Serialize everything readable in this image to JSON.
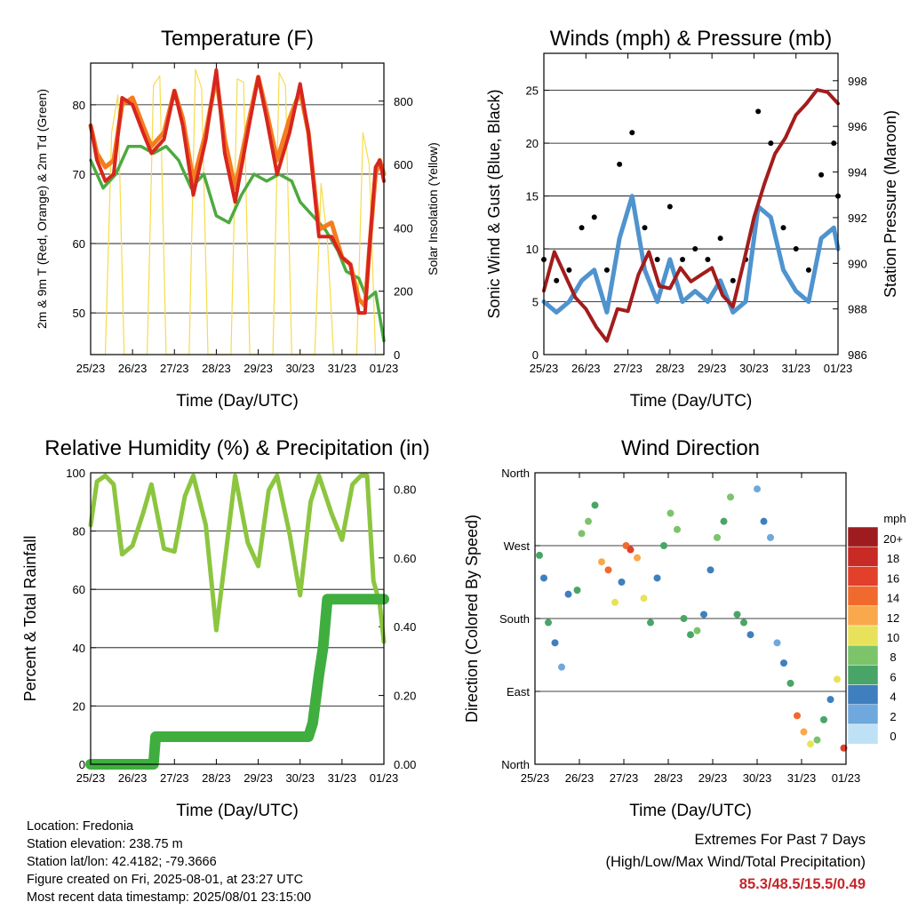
{
  "colors": {
    "temp2m": "#d7261e",
    "temp9m": "#f57c1f",
    "dewpoint": "#4caa40",
    "solar": "#f7dc4a",
    "wind": "#4f93cf",
    "gust": "#000000",
    "pressure": "#a31c1c",
    "rh": "#8cc53f",
    "precip": "#3fae3f",
    "extremes": "#c5262c"
  },
  "chart_data": [
    {
      "id": "temperature",
      "type": "line",
      "title": "Temperature (F)",
      "xlabel": "Time (Day/UTC)",
      "ylabel": "2m & 9m T (Red, Orange) & 2m Td (Green)",
      "ylabel_right": "Solar Insolation (Yellow)",
      "x_ticks": [
        "25/23",
        "26/23",
        "27/23",
        "28/23",
        "29/23",
        "30/23",
        "31/23",
        "01/23"
      ],
      "xlim": [
        0,
        7
      ],
      "ylim": [
        44,
        86
      ],
      "y_ticks": [
        50,
        60,
        70,
        80
      ],
      "ylim_right": [
        0,
        920
      ],
      "y_ticks_right": [
        0,
        200,
        400,
        600,
        800
      ],
      "grid": "horizontal at left y ticks",
      "series": [
        {
          "key": "temp2m",
          "x": [
            0,
            0.15,
            0.35,
            0.55,
            0.75,
            1.0,
            1.25,
            1.45,
            1.75,
            2.0,
            2.2,
            2.45,
            2.75,
            3.0,
            3.2,
            3.45,
            3.75,
            4.0,
            4.2,
            4.45,
            4.75,
            5.0,
            5.2,
            5.45,
            5.75,
            6.0,
            6.2,
            6.4,
            6.55,
            6.65,
            6.8,
            6.9,
            7.0
          ],
          "y": [
            77,
            72,
            69,
            70,
            81,
            80,
            76,
            73,
            75,
            82,
            77,
            67,
            75,
            85,
            73,
            66,
            76,
            84,
            78,
            70,
            76,
            83,
            76,
            61,
            61,
            58,
            57,
            50,
            50,
            59,
            71,
            72,
            69
          ]
        },
        {
          "key": "temp9m",
          "x": [
            0,
            0.15,
            0.35,
            0.55,
            0.75,
            1.0,
            1.25,
            1.45,
            1.75,
            2.0,
            2.2,
            2.45,
            2.75,
            3.0,
            3.2,
            3.45,
            3.75,
            4.0,
            4.2,
            4.45,
            4.75,
            5.0,
            5.2,
            5.45,
            5.75,
            6.0,
            6.2,
            6.4,
            6.55,
            6.65,
            6.8,
            6.9,
            7.0
          ],
          "y": [
            77,
            73,
            71,
            72,
            80,
            81,
            77,
            74,
            76,
            82,
            78,
            69,
            76,
            84,
            75,
            68,
            77,
            84,
            79,
            72,
            78,
            82,
            76,
            62,
            63,
            58,
            57,
            52,
            51,
            59,
            70,
            72,
            70
          ]
        },
        {
          "key": "dewpoint",
          "x": [
            0,
            0.3,
            0.6,
            0.9,
            1.2,
            1.5,
            1.8,
            2.1,
            2.4,
            2.7,
            3.0,
            3.3,
            3.6,
            3.9,
            4.2,
            4.5,
            4.8,
            5.0,
            5.3,
            5.6,
            5.9,
            6.1,
            6.4,
            6.6,
            6.8,
            7.0
          ],
          "y": [
            72,
            68,
            70,
            74,
            74,
            73,
            74,
            72,
            68,
            70,
            64,
            63,
            67,
            70,
            69,
            70,
            69,
            66,
            64,
            62,
            59,
            56,
            55,
            52,
            53,
            46
          ]
        },
        {
          "key": "solar",
          "axis": "right",
          "x": [
            0,
            0.35,
            0.5,
            0.65,
            0.8,
            1.35,
            1.5,
            1.65,
            1.8,
            2.35,
            2.5,
            2.65,
            2.8,
            3.35,
            3.5,
            3.65,
            3.8,
            4.35,
            4.5,
            4.65,
            4.8,
            5.35,
            5.5,
            5.65,
            5.8,
            6.35,
            6.5,
            6.65,
            6.8,
            7.0
          ],
          "y": [
            0,
            0,
            700,
            820,
            0,
            0,
            850,
            880,
            0,
            0,
            900,
            840,
            0,
            0,
            870,
            860,
            0,
            0,
            890,
            850,
            0,
            0,
            540,
            360,
            0,
            0,
            700,
            600,
            0,
            0
          ]
        }
      ]
    },
    {
      "id": "winds",
      "type": "line",
      "title": "Winds (mph) & Pressure (mb)",
      "xlabel": "Time (Day/UTC)",
      "ylabel": "Sonic Wind & Gust (Blue, Black)",
      "ylabel_right": "Station Pressure (Maroon)",
      "x_ticks": [
        "25/23",
        "26/23",
        "27/23",
        "28/23",
        "29/23",
        "30/23",
        "31/23",
        "01/23"
      ],
      "xlim": [
        0,
        7
      ],
      "ylim": [
        0,
        28.5
      ],
      "y_ticks": [
        0,
        5,
        10,
        15,
        20,
        25
      ],
      "ylim_right": [
        986,
        999.2
      ],
      "y_ticks_right": [
        986,
        988,
        990,
        992,
        994,
        996,
        998
      ],
      "grid": "horizontal at left y ticks",
      "series": [
        {
          "key": "wind",
          "x": [
            0,
            0.3,
            0.6,
            0.9,
            1.2,
            1.5,
            1.8,
            2.1,
            2.4,
            2.7,
            3.0,
            3.3,
            3.6,
            3.9,
            4.2,
            4.5,
            4.8,
            5.1,
            5.4,
            5.7,
            6.0,
            6.3,
            6.6,
            6.9,
            7.0
          ],
          "y": [
            5,
            4,
            5,
            7,
            8,
            4,
            11,
            15,
            8,
            5,
            9,
            5,
            6,
            5,
            7,
            4,
            5,
            14,
            13,
            8,
            6,
            5,
            11,
            12,
            10
          ]
        },
        {
          "key": "gust",
          "x": [
            0,
            0.3,
            0.6,
            0.9,
            1.2,
            1.5,
            1.8,
            2.1,
            2.4,
            2.7,
            3.0,
            3.3,
            3.6,
            3.9,
            4.2,
            4.5,
            4.8,
            5.1,
            5.4,
            5.7,
            6.0,
            6.3,
            6.6,
            6.9,
            7.0
          ],
          "y": [
            9,
            7,
            8,
            12,
            13,
            8,
            18,
            21,
            12,
            9,
            14,
            9,
            10,
            9,
            11,
            7,
            9,
            23,
            20,
            12,
            10,
            8,
            17,
            20,
            15
          ]
        },
        {
          "key": "pressure",
          "axis": "right",
          "x": [
            0,
            0.25,
            0.5,
            0.75,
            1.0,
            1.25,
            1.5,
            1.75,
            2.0,
            2.25,
            2.5,
            2.75,
            3.0,
            3.25,
            3.5,
            3.75,
            4.0,
            4.25,
            4.5,
            4.75,
            5.0,
            5.25,
            5.5,
            5.75,
            6.0,
            6.25,
            6.5,
            6.75,
            7.0
          ],
          "y": [
            988.8,
            990.5,
            989.5,
            988.5,
            988.0,
            987.2,
            986.6,
            988.0,
            987.9,
            989.5,
            990.5,
            989.0,
            988.9,
            989.8,
            989.2,
            989.5,
            989.8,
            988.6,
            988.1,
            990.0,
            992.0,
            993.5,
            994.8,
            995.5,
            996.5,
            997.0,
            997.6,
            997.5,
            997.0
          ]
        }
      ]
    },
    {
      "id": "humidity",
      "type": "line",
      "title": "Relative Humidity (%) & Precipitation (in)",
      "xlabel": "Time (Day/UTC)",
      "ylabel": "Percent & Total Rainfall",
      "x_ticks": [
        "25/23",
        "26/23",
        "27/23",
        "28/23",
        "29/23",
        "30/23",
        "31/23",
        "01/23"
      ],
      "xlim": [
        0,
        7
      ],
      "ylim": [
        0,
        100
      ],
      "y_ticks": [
        0,
        20,
        40,
        60,
        80,
        100
      ],
      "ylim_right": [
        0,
        0.8475
      ],
      "y_ticks_right": [
        "0.00",
        "0.20",
        "0.40",
        "0.60",
        "0.80"
      ],
      "grid": "horizontal at left y ticks",
      "series": [
        {
          "key": "rh",
          "x": [
            0,
            0.15,
            0.35,
            0.55,
            0.75,
            1.0,
            1.25,
            1.45,
            1.75,
            2.0,
            2.25,
            2.45,
            2.75,
            3.0,
            3.25,
            3.45,
            3.75,
            4.0,
            4.25,
            4.45,
            4.75,
            5.0,
            5.25,
            5.45,
            5.75,
            6.0,
            6.25,
            6.45,
            6.6,
            6.75,
            6.9,
            7.0
          ],
          "y": [
            82,
            97,
            99,
            96,
            72,
            75,
            86,
            96,
            74,
            73,
            92,
            99,
            82,
            46,
            75,
            99,
            76,
            68,
            94,
            99,
            79,
            58,
            90,
            99,
            86,
            77,
            96,
            99,
            99,
            63,
            55,
            42
          ]
        },
        {
          "key": "precip",
          "axis": "right",
          "x": [
            0,
            1.5,
            1.55,
            2.2,
            3.5,
            5.2,
            5.3,
            5.45,
            5.55,
            5.65,
            6.0,
            6.5,
            7.0
          ],
          "y": [
            0.0,
            0.0,
            0.08,
            0.08,
            0.08,
            0.08,
            0.12,
            0.26,
            0.34,
            0.48,
            0.48,
            0.48,
            0.48
          ]
        }
      ]
    },
    {
      "id": "wind_direction",
      "type": "scatter",
      "title": "Wind Direction",
      "xlabel": "Time (Day/UTC)",
      "ylabel": "Direction (Colored By Speed)",
      "x_ticks": [
        "25/23",
        "26/23",
        "27/23",
        "28/23",
        "29/23",
        "30/23",
        "31/23",
        "01/23"
      ],
      "xlim": [
        0,
        7
      ],
      "ylim": [
        0,
        360
      ],
      "y_ticks": [
        "North",
        "East",
        "South",
        "West",
        "North"
      ],
      "y_tick_values": [
        0,
        90,
        180,
        270,
        360
      ],
      "grid": "horizontal at y ticks",
      "colorbar": {
        "title": "mph",
        "labels": [
          "20+",
          "18",
          "16",
          "14",
          "12",
          "10",
          "8",
          "6",
          "4",
          "2",
          "0"
        ],
        "colors": [
          "#9e1c1f",
          "#c82a25",
          "#e2402a",
          "#f06a2e",
          "#f9a84b",
          "#e8e25a",
          "#7bc46a",
          "#49a567",
          "#3f7fbf",
          "#6fa8dc",
          "#bfe1f5"
        ]
      },
      "points": {
        "x": [
          0.1,
          0.2,
          0.3,
          0.45,
          0.6,
          0.75,
          0.95,
          1.05,
          1.2,
          1.35,
          1.5,
          1.65,
          1.8,
          1.95,
          2.05,
          2.15,
          2.3,
          2.45,
          2.6,
          2.75,
          2.9,
          3.05,
          3.2,
          3.35,
          3.5,
          3.65,
          3.8,
          3.95,
          4.1,
          4.25,
          4.4,
          4.55,
          4.7,
          4.85,
          5.0,
          5.15,
          5.3,
          5.45,
          5.6,
          5.75,
          5.9,
          6.05,
          6.2,
          6.35,
          6.5,
          6.65,
          6.8,
          6.95
        ],
        "dir": [
          258,
          230,
          175,
          150,
          120,
          210,
          215,
          285,
          300,
          320,
          250,
          240,
          200,
          225,
          270,
          265,
          255,
          205,
          175,
          230,
          270,
          310,
          290,
          180,
          160,
          165,
          185,
          240,
          280,
          300,
          330,
          185,
          175,
          160,
          340,
          300,
          280,
          150,
          125,
          100,
          60,
          40,
          25,
          30,
          55,
          80,
          105,
          20
        ],
        "speed": [
          5,
          4,
          6,
          3,
          2,
          4,
          6,
          7,
          8,
          5,
          11,
          13,
          9,
          4,
          14,
          15,
          12,
          10,
          5,
          4,
          6,
          7,
          8,
          6,
          5,
          7,
          4,
          3,
          7,
          6,
          8,
          5,
          6,
          4,
          2,
          3,
          1,
          2,
          4,
          6,
          14,
          12,
          10,
          7,
          5,
          4,
          9,
          15
        ]
      }
    }
  ],
  "info": {
    "location": "Location: Fredonia",
    "elevation": "Station elevation: 238.75 m",
    "latlon": "Station lat/lon: 42.4182; -79.3666",
    "created": "Figure created on Fri, 2025-08-01, at 23:27 UTC",
    "recent": "Most recent data timestamp: 2025/08/01 23:15:00"
  },
  "extremes": {
    "title": "Extremes For Past 7 Days",
    "subtitle": "(High/Low/Max Wind/Total Precipitation)",
    "values": "85.3/48.5/15.5/0.49"
  }
}
